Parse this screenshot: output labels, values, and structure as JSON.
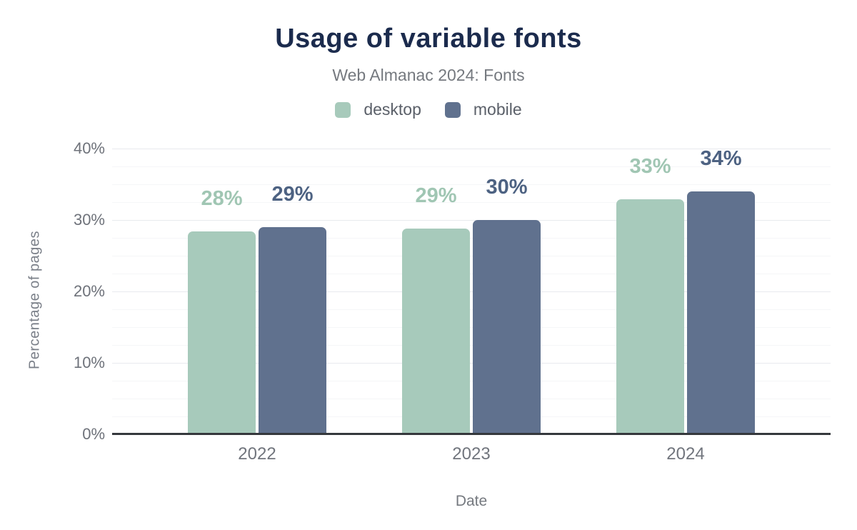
{
  "chart": {
    "title": "Usage of variable fonts",
    "subtitle": "Web Almanac 2024: Fonts"
  },
  "chart_data": {
    "type": "bar",
    "title": "Usage of variable fonts",
    "subtitle": "Web Almanac 2024: Fonts",
    "categories": [
      "2022",
      "2023",
      "2024"
    ],
    "series": [
      {
        "name": "desktop",
        "color": "#a7cabb",
        "label_color": "#a0c6b3",
        "values": [
          28.4,
          28.8,
          32.9
        ],
        "labels": [
          "28%",
          "29%",
          "33%"
        ]
      },
      {
        "name": "mobile",
        "color": "#60718e",
        "label_color": "#4d6282",
        "values": [
          29.0,
          30.0,
          34.0
        ],
        "labels": [
          "29%",
          "30%",
          "34%"
        ]
      }
    ],
    "xlabel": "Date",
    "ylabel": "Percentage of pages",
    "ylim": [
      0,
      40
    ],
    "y_ticks": [
      {
        "value": 0,
        "label": "0%"
      },
      {
        "value": 10,
        "label": "10%"
      },
      {
        "value": 20,
        "label": "20%"
      },
      {
        "value": 30,
        "label": "30%"
      },
      {
        "value": 40,
        "label": "40%"
      }
    ],
    "grid": {
      "minor_step": 2.5,
      "major_step": 10,
      "orientation": "horizontal"
    },
    "legend_position": "top"
  },
  "colors": {
    "title": "#1b2b4d",
    "subtitle": "#75797f",
    "axis_line": "#35383c",
    "tick_text": "#6e727a",
    "grid_major": "#e8eaee",
    "grid_minor": "#f5f6f8",
    "background": "#ffffff"
  }
}
